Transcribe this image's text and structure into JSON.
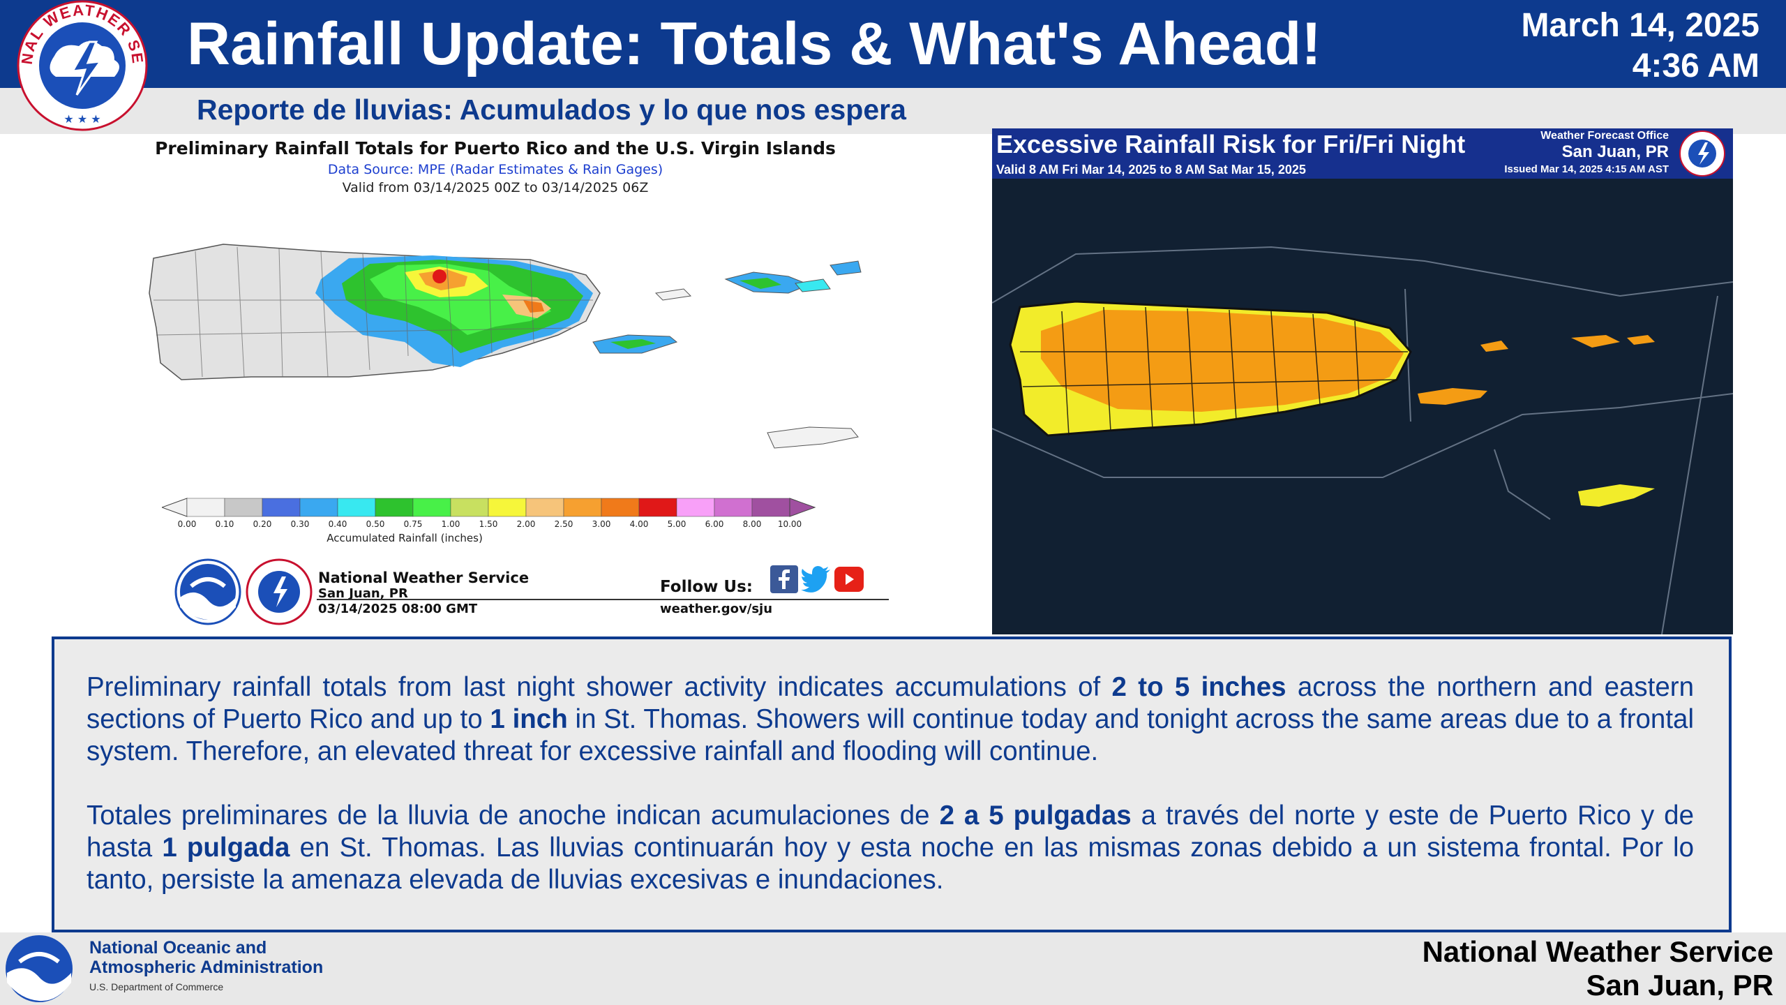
{
  "header": {
    "title": "Rainfall Update: Totals & What's Ahead!",
    "date": "March 14, 2025",
    "time": "4:36 AM",
    "subtitle": "Reporte de lluvias: Acumulados y lo que nos espera",
    "logo_text": "NATIONAL WEATHER SERVICE"
  },
  "left_map": {
    "title": "Preliminary Rainfall Totals for Puerto Rico and the U.S. Virgin Islands",
    "source": "Data Source: MPE (Radar Estimates & Rain Gages)",
    "valid": "Valid from 03/14/2025 00Z to 03/14/2025 06Z",
    "scale_ticks": [
      "0.00",
      "0.10",
      "0.20",
      "0.30",
      "0.40",
      "0.50",
      "0.75",
      "1.00",
      "1.50",
      "2.00",
      "2.50",
      "3.00",
      "4.00",
      "5.00",
      "6.00",
      "8.00",
      "10.00"
    ],
    "scale_colors": [
      "#f2f2f2",
      "#c8c8c8",
      "#4a6fe0",
      "#3aa8f0",
      "#38e8f0",
      "#2ec22e",
      "#48f048",
      "#c8e060",
      "#f6f63a",
      "#f6c47a",
      "#f6a030",
      "#f07a1a",
      "#e01818",
      "#f8a0f8",
      "#d070d0",
      "#a050a0"
    ],
    "scale_label": "Accumulated Rainfall (inches)",
    "org_name": "National Weather Service",
    "org_city": "San Juan, PR",
    "org_datetime": "03/14/2025 08:00 GMT",
    "follow_label": "Follow Us:",
    "website": "weather.gov/sju",
    "social_icons": [
      "facebook-icon",
      "twitter-icon",
      "youtube-icon"
    ]
  },
  "right_map": {
    "title": "Excessive Rainfall Risk for Fri/Fri Night",
    "valid": "Valid 8 AM Fri Mar 14, 2025 to 8 AM Sat Mar 15, 2025",
    "office_label": "Weather Forecast Office",
    "office_city": "San Juan, PR",
    "issued": "Issued Mar 14, 2025 4:15 AM AST",
    "colors": {
      "marginal": "#f2ec2a",
      "slight": "#f49c14"
    }
  },
  "text": {
    "en": {
      "a": "Preliminary rainfall totals from last night shower activity indicates accumulations of ",
      "b": "2 to 5 inches",
      "c": " across the northern and eastern sections of  Puerto Rico and up to ",
      "d": "1 inch",
      "e": " in St. Thomas. Showers will continue today and tonight across the same areas due to a frontal system. Therefore, an elevated threat for excessive rainfall and flooding will continue."
    },
    "es": {
      "a": "Totales preliminares de la lluvia de anoche indican acumulaciones de ",
      "b": "2 a 5 pulgadas",
      "c": " a través del norte y este de Puerto Rico y de hasta ",
      "d": "1 pulgada",
      "e": " en St. Thomas. Las lluvias continuarán hoy y esta noche en las mismas zonas debido a un sistema frontal. Por lo tanto, persiste la amenaza elevada de lluvias excesivas e inundaciones."
    }
  },
  "footer": {
    "noaa_line1": "National Oceanic and",
    "noaa_line2": "Atmospheric Administration",
    "noaa_dept": "U.S. Department of Commerce",
    "nws": "National Weather Service",
    "city": "San Juan, PR"
  },
  "colors": {
    "brand": "#0d3a8e"
  }
}
